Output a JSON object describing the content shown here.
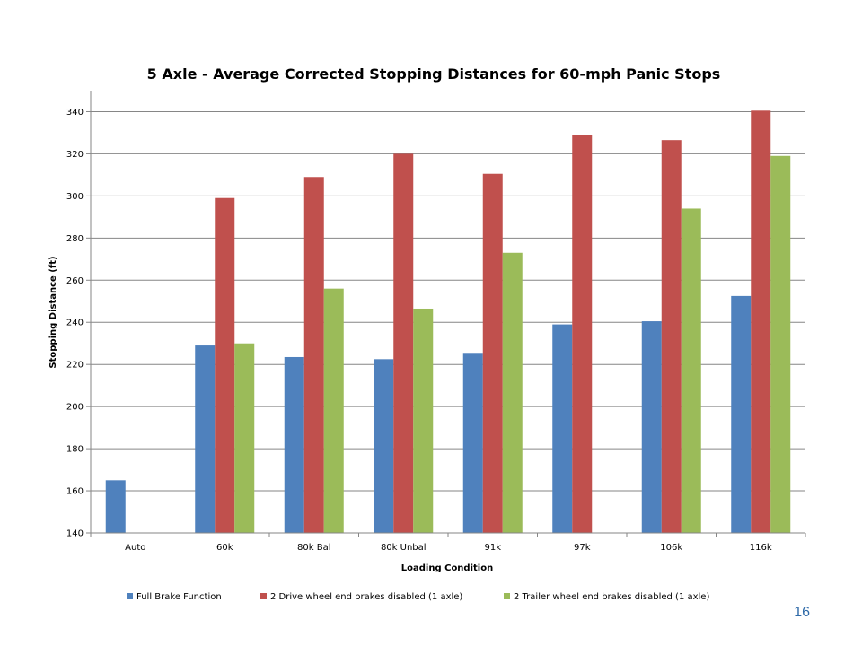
{
  "page": {
    "number": "16"
  },
  "chart_data": {
    "type": "bar",
    "title": "5 Axle - Average Corrected Stopping Distances for 60-mph Panic Stops",
    "xlabel": "Loading Condition",
    "ylabel": "Stopping Distance (ft)",
    "ylim": [
      140,
      350
    ],
    "yticks": [
      140,
      160,
      180,
      200,
      220,
      240,
      260,
      280,
      300,
      320,
      340
    ],
    "grid": true,
    "legend_position": "bottom",
    "categories": [
      "Auto",
      "60k",
      "80k Bal",
      "80k Unbal",
      "91k",
      "97k",
      "106k",
      "116k"
    ],
    "series": [
      {
        "name": "Full Brake Function",
        "color": "#4f81bd",
        "values": [
          165,
          229,
          223.5,
          222.5,
          225.5,
          239,
          240.5,
          252.5
        ]
      },
      {
        "name": "2 Drive wheel end brakes disabled (1 axle)",
        "color": "#c0504d",
        "values": [
          null,
          299,
          309,
          320,
          310.5,
          329,
          326.5,
          340.5
        ]
      },
      {
        "name": "2 Trailer wheel end brakes disabled (1 axle)",
        "color": "#9bbb59",
        "values": [
          null,
          230,
          256,
          246.5,
          273,
          null,
          294,
          319
        ]
      }
    ]
  }
}
